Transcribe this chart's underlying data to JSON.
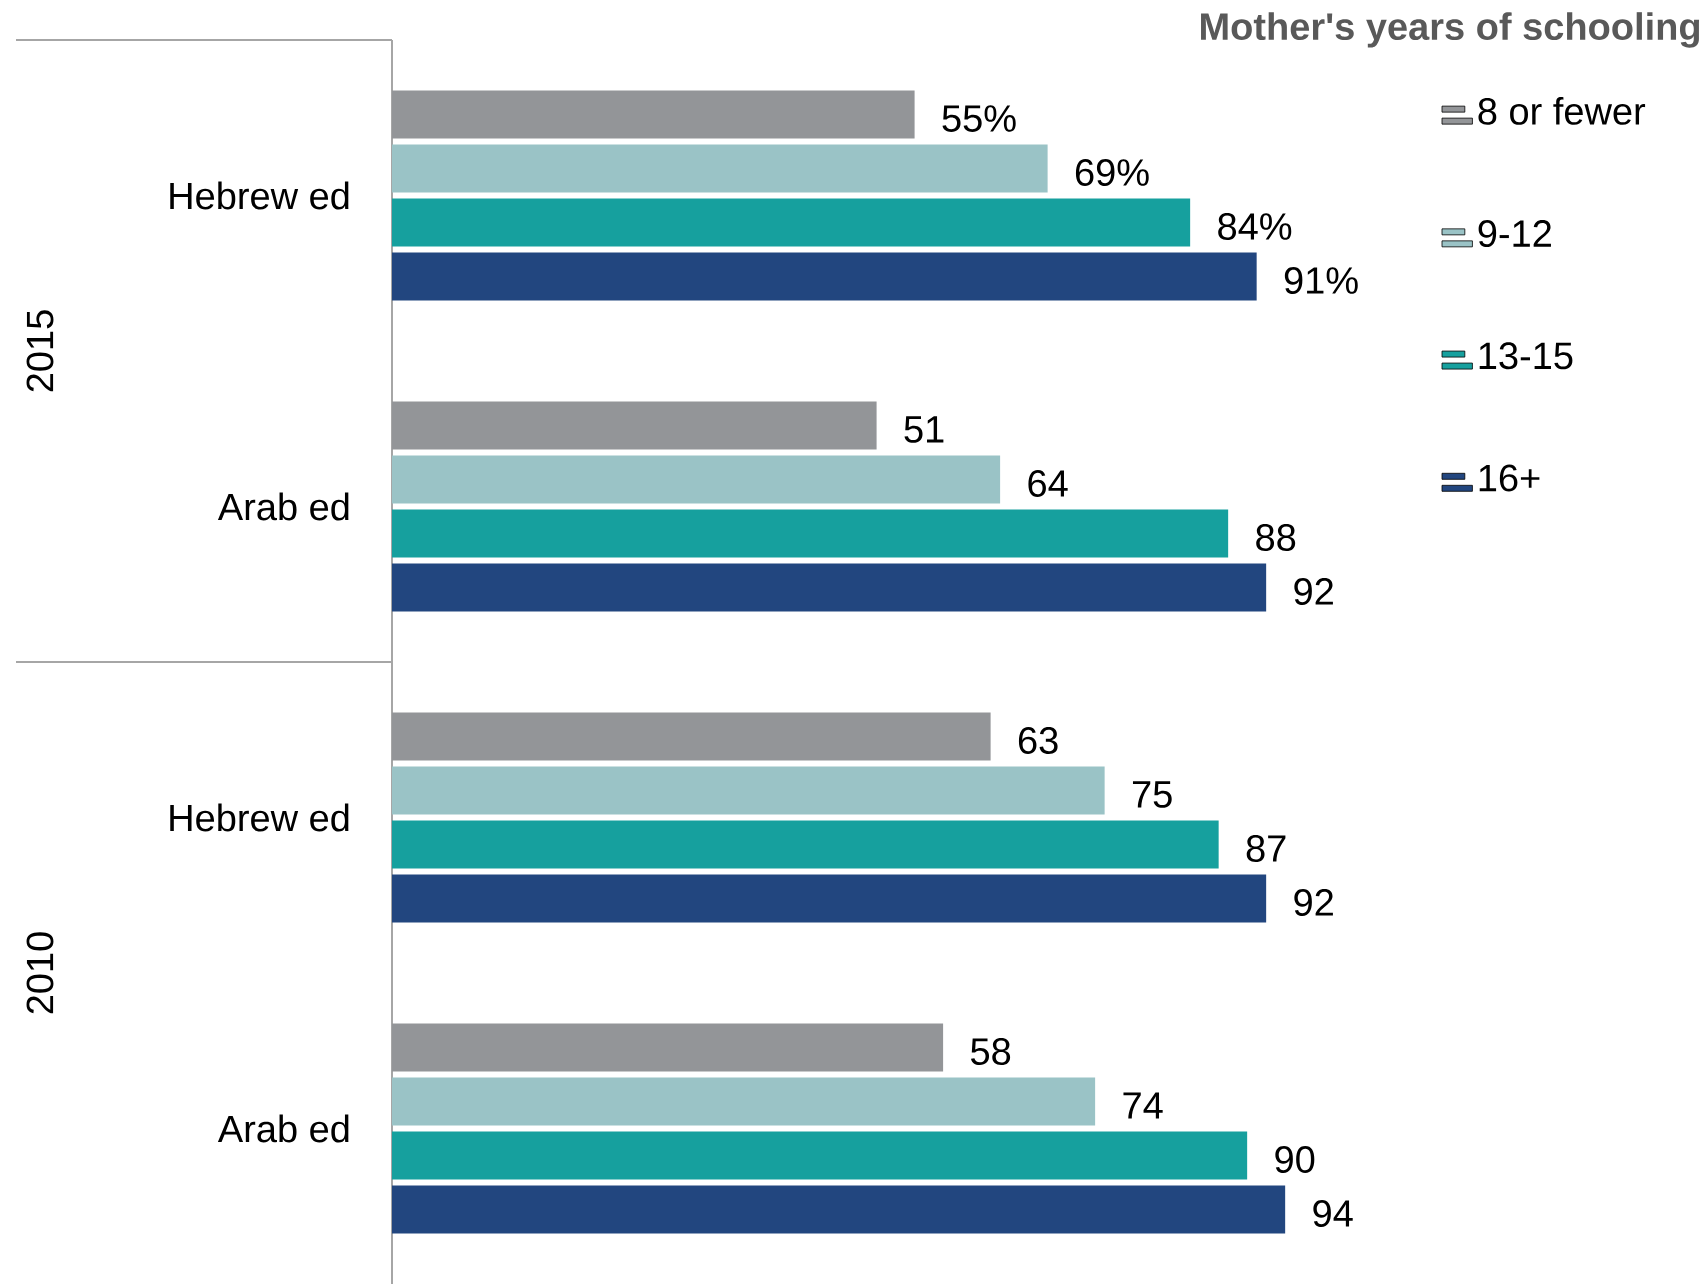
{
  "chart_data": {
    "type": "bar",
    "orientation": "horizontal",
    "legend_title": "Mother's years of schooling",
    "legend": "top right",
    "categories": [
      "Hebrew ed",
      "Arab ed",
      "Hebrew ed",
      "Arab ed"
    ],
    "annotations": [
      "2015",
      "2010"
    ],
    "series": [
      {
        "name": "8 or fewer",
        "color": "#939598",
        "values": [
          55,
          51,
          63,
          58
        ],
        "value_labels": [
          "55%",
          "51",
          "63",
          "58"
        ]
      },
      {
        "name": "9-12",
        "color": "#9ac3c6",
        "values": [
          69,
          64,
          75,
          74
        ],
        "value_labels": [
          "69%",
          "64",
          "75",
          "74"
        ]
      },
      {
        "name": "13-15",
        "color": "#16a09e",
        "values": [
          84,
          88,
          87,
          90
        ],
        "value_labels": [
          "84%",
          "88",
          "87",
          "90"
        ]
      },
      {
        "name": "16+",
        "color": "#22467f",
        "values": [
          91,
          92,
          92,
          94
        ],
        "value_labels": [
          "91%",
          "92",
          "92",
          "94"
        ]
      }
    ]
  }
}
